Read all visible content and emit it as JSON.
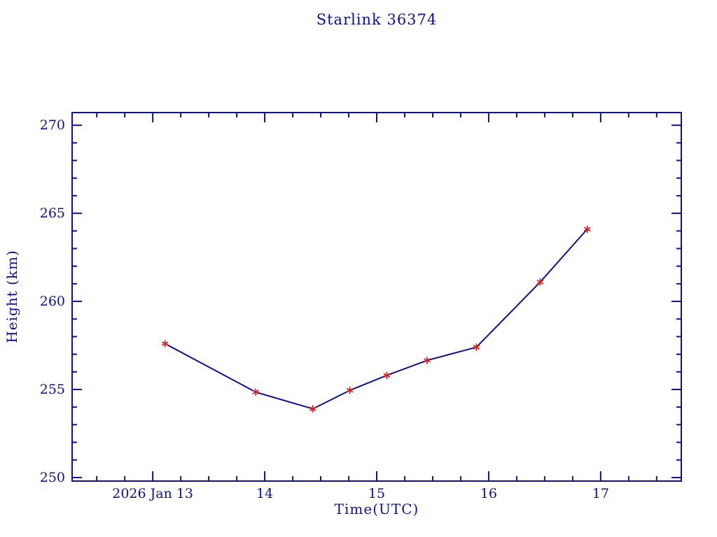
{
  "chart_data": {
    "type": "line",
    "title": "Starlink 36374",
    "xlabel": "Time(UTC)",
    "ylabel": "Height (km)",
    "x": [
      13.11,
      13.92,
      14.43,
      14.76,
      15.09,
      15.45,
      15.89,
      16.46,
      16.88
    ],
    "y": [
      257.6,
      254.85,
      253.9,
      254.95,
      255.8,
      256.65,
      257.4,
      261.1,
      264.1
    ],
    "xlim": [
      12.28,
      17.72
    ],
    "ylim": [
      249.8,
      270.72
    ],
    "x_major_ticks": [
      {
        "value": 13,
        "label": "2026 Jan 13"
      },
      {
        "value": 14,
        "label": "14"
      },
      {
        "value": 15,
        "label": "15"
      },
      {
        "value": 16,
        "label": "16"
      },
      {
        "value": 17,
        "label": "17"
      }
    ],
    "x_minor_step": 0.25,
    "y_major_ticks": [
      {
        "value": 250,
        "label": "250"
      },
      {
        "value": 255,
        "label": "255"
      },
      {
        "value": 260,
        "label": "260"
      },
      {
        "value": 265,
        "label": "265"
      },
      {
        "value": 270,
        "label": "270"
      }
    ],
    "y_minor_step": 1,
    "grid": false,
    "legend": null,
    "marker": "asterisk",
    "axis_color": "#10108E",
    "text_color": "#10108E",
    "line_color": "#10108E",
    "marker_color": "#DC1C1C"
  }
}
